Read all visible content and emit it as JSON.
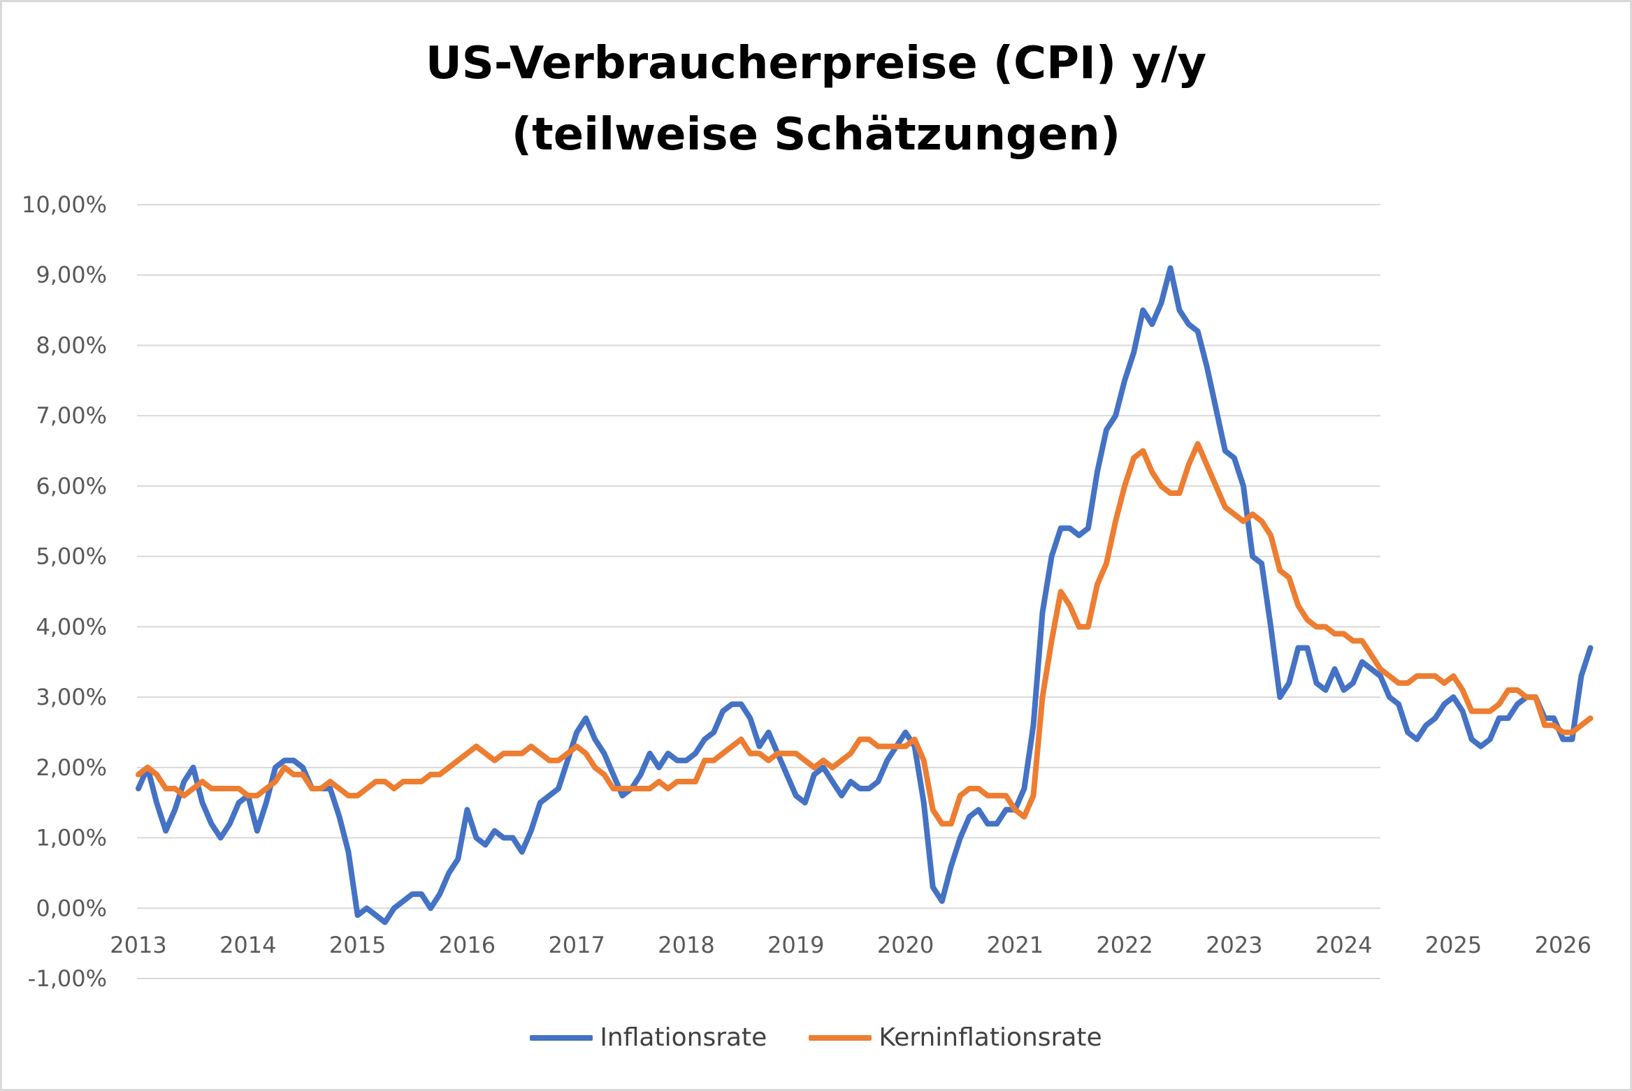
{
  "chart_data": {
    "type": "line",
    "title": [
      "US-Verbraucherpreise (CPI) y/y",
      "(teilweise Schätzungen)"
    ],
    "xlabel": "",
    "ylabel": "",
    "ylim": [
      -1,
      10
    ],
    "y_ticks": [
      "-1,00%",
      "0,00%",
      "1,00%",
      "2,00%",
      "3,00%",
      "4,00%",
      "5,00%",
      "6,00%",
      "7,00%",
      "8,00%",
      "9,00%",
      "10,00%"
    ],
    "x_ticks": [
      "2013",
      "2014",
      "2015",
      "2016",
      "2017",
      "2018",
      "2019",
      "2020",
      "2021",
      "2022",
      "2023",
      "2024",
      "2025",
      "2026"
    ],
    "x_start": "2013-01",
    "frequency": "monthly",
    "grid": true,
    "legend_position": "bottom",
    "series": [
      {
        "name": "Inflationsrate",
        "color": "#4472C4",
        "values": [
          1.7,
          2.0,
          1.5,
          1.1,
          1.4,
          1.8,
          2.0,
          1.5,
          1.2,
          1.0,
          1.2,
          1.5,
          1.6,
          1.1,
          1.5,
          2.0,
          2.1,
          2.1,
          2.0,
          1.7,
          1.7,
          1.7,
          1.3,
          0.8,
          -0.1,
          0.0,
          -0.1,
          -0.2,
          0.0,
          0.1,
          0.2,
          0.2,
          0.0,
          0.2,
          0.5,
          0.7,
          1.4,
          1.0,
          0.9,
          1.1,
          1.0,
          1.0,
          0.8,
          1.1,
          1.5,
          1.6,
          1.7,
          2.1,
          2.5,
          2.7,
          2.4,
          2.2,
          1.9,
          1.6,
          1.7,
          1.9,
          2.2,
          2.0,
          2.2,
          2.1,
          2.1,
          2.2,
          2.4,
          2.5,
          2.8,
          2.9,
          2.9,
          2.7,
          2.3,
          2.5,
          2.2,
          1.9,
          1.6,
          1.5,
          1.9,
          2.0,
          1.8,
          1.6,
          1.8,
          1.7,
          1.7,
          1.8,
          2.1,
          2.3,
          2.5,
          2.3,
          1.5,
          0.3,
          0.1,
          0.6,
          1.0,
          1.3,
          1.4,
          1.2,
          1.2,
          1.4,
          1.4,
          1.7,
          2.6,
          4.2,
          5.0,
          5.4,
          5.4,
          5.3,
          5.4,
          6.2,
          6.8,
          7.0,
          7.5,
          7.9,
          8.5,
          8.3,
          8.6,
          9.1,
          8.5,
          8.3,
          8.2,
          7.7,
          7.1,
          6.5,
          6.4,
          6.0,
          5.0,
          4.9,
          4.0,
          3.0,
          3.2,
          3.7,
          3.7,
          3.2,
          3.1,
          3.4,
          3.1,
          3.2,
          3.5,
          3.4,
          3.3,
          3.0,
          2.9,
          2.5,
          2.4,
          2.6,
          2.7,
          2.9,
          3.0,
          2.8,
          2.4,
          2.3,
          2.4,
          2.7,
          2.7,
          2.9,
          3.0,
          3.0,
          2.7,
          2.7,
          2.4,
          2.4,
          3.3,
          3.7
        ]
      },
      {
        "name": "Kerninflationsrate",
        "color": "#ED7D31",
        "values": [
          1.9,
          2.0,
          1.9,
          1.7,
          1.7,
          1.6,
          1.7,
          1.8,
          1.7,
          1.7,
          1.7,
          1.7,
          1.6,
          1.6,
          1.7,
          1.8,
          2.0,
          1.9,
          1.9,
          1.7,
          1.7,
          1.8,
          1.7,
          1.6,
          1.6,
          1.7,
          1.8,
          1.8,
          1.7,
          1.8,
          1.8,
          1.8,
          1.9,
          1.9,
          2.0,
          2.1,
          2.2,
          2.3,
          2.2,
          2.1,
          2.2,
          2.2,
          2.2,
          2.3,
          2.2,
          2.1,
          2.1,
          2.2,
          2.3,
          2.2,
          2.0,
          1.9,
          1.7,
          1.7,
          1.7,
          1.7,
          1.7,
          1.8,
          1.7,
          1.8,
          1.8,
          1.8,
          2.1,
          2.1,
          2.2,
          2.3,
          2.4,
          2.2,
          2.2,
          2.1,
          2.2,
          2.2,
          2.2,
          2.1,
          2.0,
          2.1,
          2.0,
          2.1,
          2.2,
          2.4,
          2.4,
          2.3,
          2.3,
          2.3,
          2.3,
          2.4,
          2.1,
          1.4,
          1.2,
          1.2,
          1.6,
          1.7,
          1.7,
          1.6,
          1.6,
          1.6,
          1.4,
          1.3,
          1.6,
          3.0,
          3.8,
          4.5,
          4.3,
          4.0,
          4.0,
          4.6,
          4.9,
          5.5,
          6.0,
          6.4,
          6.5,
          6.2,
          6.0,
          5.9,
          5.9,
          6.3,
          6.6,
          6.3,
          6.0,
          5.7,
          5.6,
          5.5,
          5.6,
          5.5,
          5.3,
          4.8,
          4.7,
          4.3,
          4.1,
          4.0,
          4.0,
          3.9,
          3.9,
          3.8,
          3.8,
          3.6,
          3.4,
          3.3,
          3.2,
          3.2,
          3.3,
          3.3,
          3.3,
          3.2,
          3.3,
          3.1,
          2.8,
          2.8,
          2.8,
          2.9,
          3.1,
          3.1,
          3.0,
          3.0,
          2.6,
          2.6,
          2.5,
          2.5,
          2.6,
          2.7
        ]
      }
    ]
  }
}
